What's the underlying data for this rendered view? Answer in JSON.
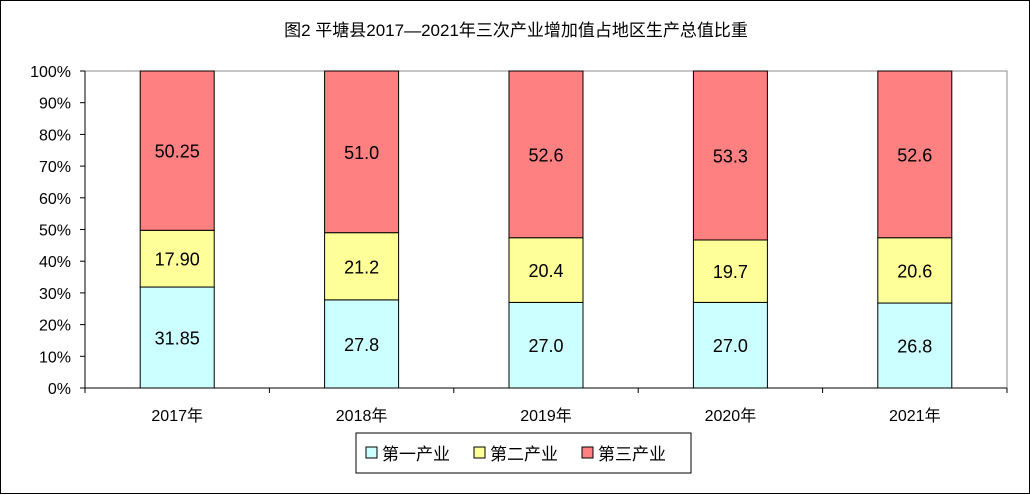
{
  "chart_data": {
    "type": "bar",
    "stacked": true,
    "title": "图2  平塘县2017—2021年三次产业增加值占地区生产总值比重",
    "categories": [
      "2017年",
      "2018年",
      "2019年",
      "2020年",
      "2021年"
    ],
    "series": [
      {
        "name": "第一产业",
        "values": [
          31.85,
          27.8,
          27.0,
          27.0,
          26.8
        ],
        "labels": [
          "31.85",
          "27.8",
          "27.0",
          "27.0",
          "26.8"
        ],
        "color": "#CCFFFF"
      },
      {
        "name": "第二产业",
        "values": [
          17.9,
          21.2,
          20.4,
          19.7,
          20.6
        ],
        "labels": [
          "17.90",
          "21.2",
          "20.4",
          "19.7",
          "20.6"
        ],
        "color": "#FFFF99"
      },
      {
        "name": "第三产业",
        "values": [
          50.25,
          51.0,
          52.6,
          53.3,
          52.6
        ],
        "labels": [
          "50.25",
          "51.0",
          "52.6",
          "53.3",
          "52.6"
        ],
        "color": "#FF8080"
      }
    ],
    "yticks": [
      "0%",
      "10%",
      "20%",
      "30%",
      "40%",
      "50%",
      "60%",
      "70%",
      "80%",
      "90%",
      "100%"
    ],
    "ylim": [
      0,
      100
    ],
    "grid": false,
    "legend": "bottom"
  }
}
